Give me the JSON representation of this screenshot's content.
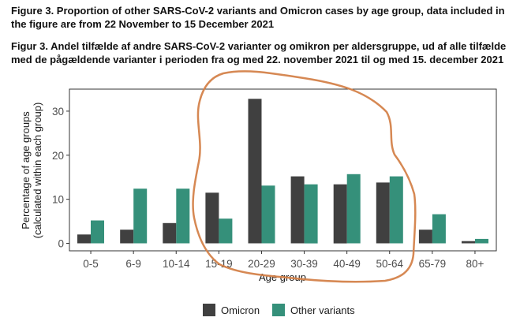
{
  "captions": {
    "english": "Figure 3. Proportion of other SARS-CoV-2 variants and Omicron cases by age group, data included in the figure are from 22 November to 15 December 2021",
    "danish": "Figur 3.  Andel tilfælde af andre SARS-CoV-2 varianter og omikron per aldersgruppe, ud af alle tilfælde med de pågældende varianter i perioden fra og med 22. november 2021 til og med 15. december 2021"
  },
  "chart_data": {
    "type": "bar",
    "categories": [
      "0-5",
      "6-9",
      "10-14",
      "15-19",
      "20-29",
      "30-39",
      "40-49",
      "50-64",
      "65-79",
      "80+"
    ],
    "series": [
      {
        "name": "Omicron",
        "color": "#404040",
        "values": [
          2.0,
          3.1,
          4.6,
          11.5,
          32.8,
          15.2,
          13.4,
          13.8,
          3.1,
          0.5
        ]
      },
      {
        "name": "Other variants",
        "color": "#35907a",
        "values": [
          5.2,
          12.4,
          12.4,
          5.6,
          13.1,
          13.4,
          15.7,
          15.2,
          6.6,
          1.0
        ]
      }
    ],
    "xlabel": "Age group",
    "ylabel_lines": [
      "Percentage of age groups",
      "(calculated within each group)"
    ],
    "yticks": [
      0,
      10,
      20,
      30
    ],
    "ylim": [
      -1.7,
      35
    ],
    "grid": false,
    "legend_position": "bottom",
    "annotation": {
      "type": "hand-drawn ellipse",
      "color": "#d4824a",
      "encloses": [
        "15-19",
        "20-29",
        "30-39",
        "40-49",
        "50-64"
      ]
    }
  }
}
